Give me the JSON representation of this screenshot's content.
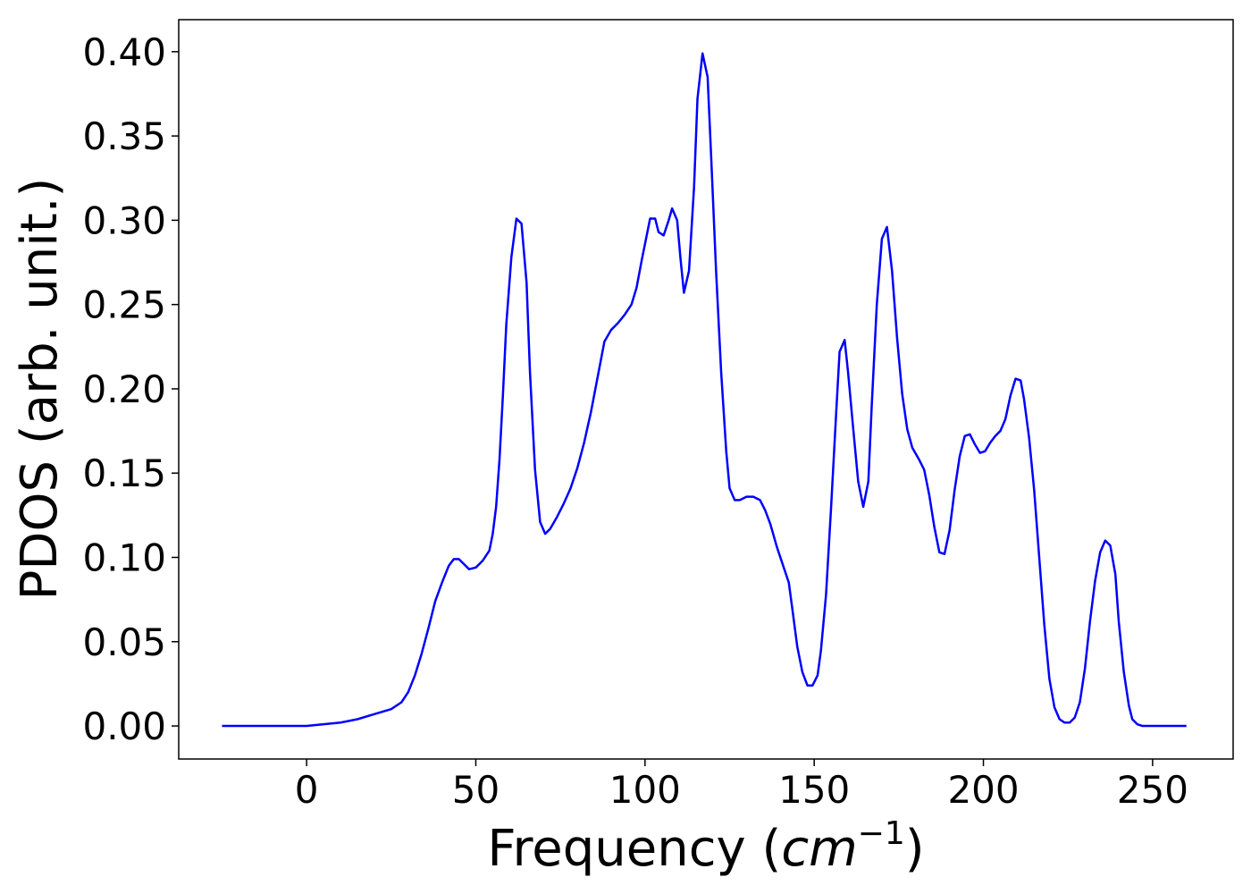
{
  "chart_data": {
    "type": "line",
    "xlabel": [
      "Frequency (",
      "cm",
      "−1",
      ")"
    ],
    "ylabel": "PDOS (arb. unit.)",
    "xlim": [
      -37.8,
      273.8
    ],
    "ylim": [
      -0.0196,
      0.419
    ],
    "xticks": [
      0,
      50,
      100,
      150,
      200,
      250
    ],
    "yticks": [
      {
        "value": 0,
        "label": "0.00"
      },
      {
        "value": 0.05,
        "label": "0.05"
      },
      {
        "value": 0.1,
        "label": "0.10"
      },
      {
        "value": 0.15,
        "label": "0.15"
      },
      {
        "value": 0.2,
        "label": "0.20"
      },
      {
        "value": 0.25,
        "label": "0.25"
      },
      {
        "value": 0.3,
        "label": "0.30"
      },
      {
        "value": 0.35,
        "label": "0.35"
      },
      {
        "value": 0.4,
        "label": "0.40"
      }
    ],
    "grid": false,
    "x": [
      -25,
      0,
      10,
      15,
      20,
      25,
      28,
      30,
      32,
      34,
      36,
      38,
      40,
      42,
      43.5,
      45,
      47,
      48,
      50,
      52,
      54,
      55,
      56,
      57,
      58,
      59,
      60.5,
      62,
      63.5,
      65,
      66,
      67.5,
      69,
      70.5,
      72,
      74,
      76,
      78,
      80,
      82,
      84,
      86,
      88,
      90,
      92,
      94,
      96,
      97.5,
      99,
      100.5,
      101.5,
      103,
      104,
      105.5,
      107,
      108,
      109.5,
      110.5,
      111.5,
      113,
      114.5,
      115.5,
      117,
      118.5,
      119.5,
      121,
      122.5,
      124,
      125,
      126.5,
      128,
      130,
      132,
      134,
      135.5,
      137,
      139,
      141,
      142.5,
      143.5,
      145,
      146.5,
      148,
      149.5,
      151,
      152,
      153.5,
      155,
      156.5,
      157.5,
      159,
      160,
      161.5,
      163,
      164.5,
      166,
      167,
      168.5,
      170,
      171.5,
      173,
      174.5,
      176,
      177.5,
      179,
      181,
      182.5,
      184,
      185.5,
      187,
      188.5,
      190,
      191.5,
      193,
      194.5,
      196,
      197.5,
      199,
      200.5,
      202,
      203.5,
      205,
      206.5,
      208,
      209.5,
      211,
      212,
      213.5,
      215,
      216.5,
      218,
      219.5,
      221,
      222.5,
      224,
      225.5,
      227,
      228.5,
      230,
      231.5,
      233,
      234.5,
      236,
      237.5,
      239,
      240,
      241.5,
      243,
      244,
      245.5,
      247,
      260
    ],
    "series": [
      {
        "name": "PDOS",
        "color": "#0000ff",
        "values": [
          0,
          0,
          0.002,
          0.004,
          0.007,
          0.01,
          0.014,
          0.02,
          0.03,
          0.043,
          0.058,
          0.074,
          0.085,
          0.095,
          0.099,
          0.099,
          0.095,
          0.093,
          0.094,
          0.098,
          0.104,
          0.114,
          0.13,
          0.158,
          0.196,
          0.238,
          0.278,
          0.301,
          0.298,
          0.263,
          0.21,
          0.152,
          0.121,
          0.114,
          0.117,
          0.124,
          0.132,
          0.141,
          0.153,
          0.168,
          0.186,
          0.207,
          0.228,
          0.235,
          0.239,
          0.244,
          0.25,
          0.26,
          0.276,
          0.291,
          0.301,
          0.301,
          0.293,
          0.291,
          0.3,
          0.307,
          0.3,
          0.277,
          0.257,
          0.27,
          0.32,
          0.372,
          0.399,
          0.385,
          0.34,
          0.27,
          0.21,
          0.163,
          0.141,
          0.134,
          0.134,
          0.136,
          0.136,
          0.134,
          0.128,
          0.12,
          0.106,
          0.094,
          0.085,
          0.07,
          0.047,
          0.032,
          0.024,
          0.024,
          0.03,
          0.045,
          0.078,
          0.13,
          0.186,
          0.222,
          0.229,
          0.21,
          0.177,
          0.145,
          0.13,
          0.145,
          0.19,
          0.25,
          0.289,
          0.296,
          0.27,
          0.23,
          0.197,
          0.176,
          0.165,
          0.158,
          0.152,
          0.137,
          0.118,
          0.103,
          0.102,
          0.116,
          0.14,
          0.16,
          0.172,
          0.173,
          0.167,
          0.162,
          0.163,
          0.168,
          0.172,
          0.175,
          0.182,
          0.196,
          0.206,
          0.205,
          0.194,
          0.171,
          0.14,
          0.1,
          0.06,
          0.028,
          0.011,
          0.004,
          0.002,
          0.002,
          0.005,
          0.014,
          0.034,
          0.062,
          0.086,
          0.103,
          0.11,
          0.107,
          0.09,
          0.062,
          0.032,
          0.012,
          0.004,
          0.001,
          0,
          0
        ]
      }
    ]
  }
}
